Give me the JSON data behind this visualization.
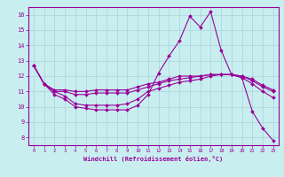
{
  "xlabel": "Windchill (Refroidissement éolien,°C)",
  "bg_color": "#c8eef0",
  "line_color": "#990099",
  "grid_color": "#b0d8dc",
  "xlim": [
    -0.5,
    23.5
  ],
  "ylim": [
    7.5,
    16.5
  ],
  "xticks": [
    0,
    1,
    2,
    3,
    4,
    5,
    6,
    7,
    8,
    9,
    10,
    11,
    12,
    13,
    14,
    15,
    16,
    17,
    18,
    19,
    20,
    21,
    22,
    23
  ],
  "yticks": [
    8,
    9,
    10,
    11,
    12,
    13,
    14,
    15,
    16
  ],
  "series": [
    [
      12.7,
      11.5,
      10.8,
      10.5,
      10.0,
      9.9,
      9.8,
      9.8,
      9.8,
      9.8,
      10.1,
      10.8,
      12.2,
      13.3,
      14.3,
      15.9,
      15.2,
      16.2,
      13.7,
      12.1,
      11.9,
      9.7,
      8.6,
      7.8
    ],
    [
      12.7,
      11.5,
      11.0,
      10.7,
      10.2,
      10.1,
      10.1,
      10.1,
      10.1,
      10.2,
      10.5,
      11.0,
      11.2,
      11.4,
      11.6,
      11.7,
      11.8,
      12.0,
      12.1,
      12.1,
      11.9,
      11.5,
      11.0,
      10.6
    ],
    [
      12.7,
      11.5,
      11.0,
      11.0,
      10.8,
      10.8,
      10.9,
      10.9,
      10.9,
      10.9,
      11.1,
      11.3,
      11.5,
      11.7,
      11.8,
      11.9,
      12.0,
      12.1,
      12.1,
      12.1,
      12.0,
      11.7,
      11.3,
      11.0
    ],
    [
      12.7,
      11.5,
      11.1,
      11.1,
      11.0,
      11.0,
      11.1,
      11.1,
      11.1,
      11.1,
      11.3,
      11.5,
      11.6,
      11.8,
      12.0,
      12.0,
      12.0,
      12.1,
      12.1,
      12.1,
      12.0,
      11.8,
      11.4,
      11.1
    ]
  ]
}
